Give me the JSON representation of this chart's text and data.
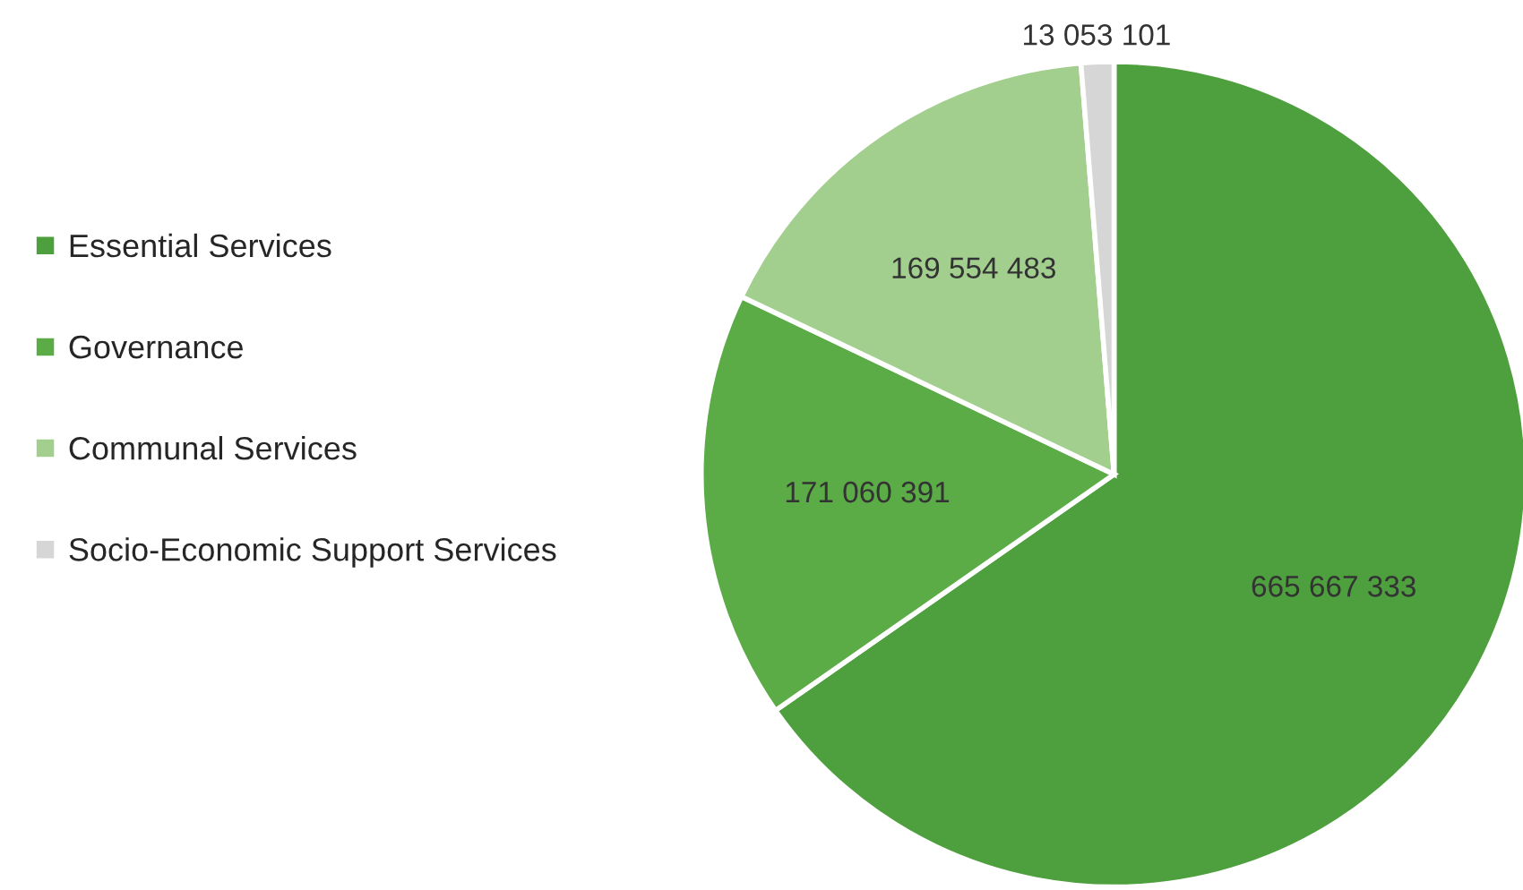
{
  "chart_data": {
    "type": "pie",
    "categories": [
      "Essential Services",
      "Governance",
      "Communal Services",
      "Socio-Economic Support Services"
    ],
    "values": [
      665667333,
      171060391,
      169554483,
      13053101
    ],
    "value_labels": [
      "665 667 333",
      "171 060 391",
      "169 554 483",
      "13 053 101"
    ],
    "colors": [
      "#4e9f3d",
      "#5bab47",
      "#a2ce8e",
      "#d6d6d6"
    ],
    "legend": "left"
  }
}
